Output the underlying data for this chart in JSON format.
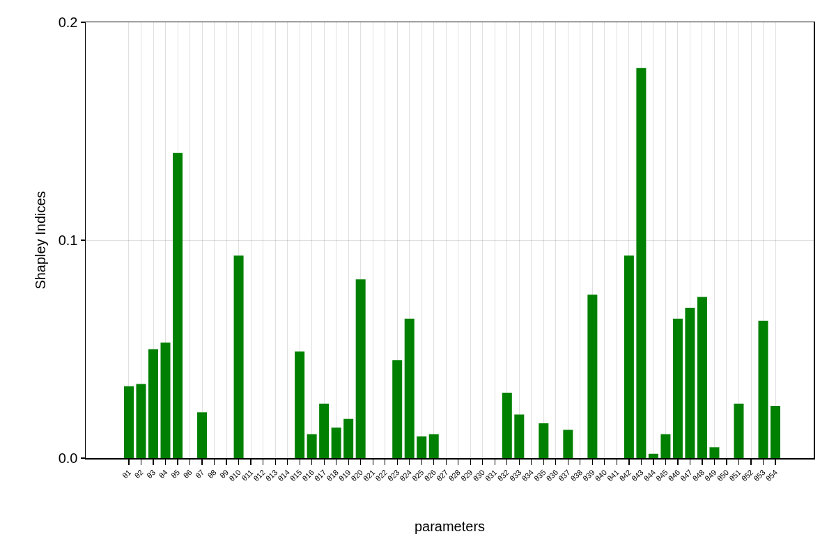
{
  "chart_data": {
    "type": "bar",
    "xlabel": "parameters",
    "ylabel": "Shapley Indices",
    "categories": [
      "θ1",
      "θ2",
      "θ3",
      "θ4",
      "θ5",
      "θ6",
      "θ7",
      "θ8",
      "θ9",
      "θ10",
      "θ11",
      "θ12",
      "θ13",
      "θ14",
      "θ15",
      "θ16",
      "θ17",
      "θ18",
      "θ19",
      "θ20",
      "θ21",
      "θ22",
      "θ23",
      "θ24",
      "θ25",
      "θ26",
      "θ27",
      "θ28",
      "θ29",
      "θ30",
      "θ31",
      "θ32",
      "θ33",
      "θ34",
      "θ35",
      "θ36",
      "θ37",
      "θ38",
      "θ39",
      "θ40",
      "θ41",
      "θ42",
      "θ43",
      "θ44",
      "θ45",
      "θ46",
      "θ47",
      "θ48",
      "θ49",
      "θ50",
      "θ51",
      "θ52",
      "θ53",
      "θ54"
    ],
    "values": [
      0.033,
      0.034,
      0.05,
      0.053,
      0.14,
      0,
      0.021,
      0,
      0,
      0.093,
      0,
      0,
      0,
      0,
      0.049,
      0.011,
      0.025,
      0.014,
      0.018,
      0.082,
      0,
      0,
      0.045,
      0.064,
      0.01,
      0.011,
      0,
      0,
      0,
      0,
      0,
      0.03,
      0.02,
      0,
      0.016,
      0,
      0.013,
      0,
      0.075,
      0,
      0,
      0.093,
      0.179,
      0.002,
      0.011,
      0.064,
      0.069,
      0.074,
      0.005,
      0,
      0.025,
      0,
      0.063,
      0.024
    ],
    "color": "#008000",
    "ylim": [
      0,
      0.2
    ],
    "yticks": [
      {
        "value": 0,
        "label": "0.0"
      },
      0.1,
      0.2
    ],
    "grid": true
  }
}
